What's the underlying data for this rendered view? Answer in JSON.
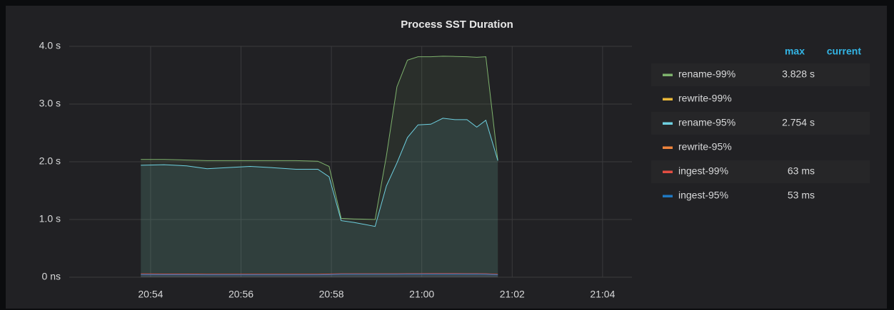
{
  "chart_data": {
    "type": "line",
    "title": "Process SST Duration",
    "x": [
      "20:53:47",
      "20:54:18",
      "20:54:48",
      "20:55:15",
      "20:55:43",
      "20:56:12",
      "20:56:40",
      "20:57:13",
      "20:57:42",
      "20:57:57",
      "20:58:13",
      "20:58:30",
      "20:58:58",
      "20:59:13",
      "20:59:27",
      "20:59:41",
      "20:59:55",
      "21:00:12",
      "21:00:28",
      "21:00:44",
      "21:01:00",
      "21:01:13",
      "21:01:25",
      "21:01:41"
    ],
    "xlim": [
      "20:52:12",
      "21:04:39"
    ],
    "xticks": [
      "20:54",
      "20:56",
      "20:58",
      "21:00",
      "21:02",
      "21:04"
    ],
    "ylim": [
      0,
      4
    ],
    "yticks": [
      {
        "value": 0,
        "label": "0 ns"
      },
      {
        "value": 1,
        "label": "1.0 s"
      },
      {
        "value": 2,
        "label": "2.0 s"
      },
      {
        "value": 3,
        "label": "3.0 s"
      },
      {
        "value": 4,
        "label": "4.0 s"
      }
    ],
    "grid": true,
    "fill": true,
    "legend_columns": [
      "max",
      "current"
    ],
    "series": [
      {
        "name": "rename-99%",
        "color": "#7eb26d",
        "max": "3.828 s",
        "values": [
          2.04,
          2.04,
          2.03,
          2.02,
          2.02,
          2.02,
          2.02,
          2.02,
          2.01,
          1.92,
          1.02,
          1.01,
          1.0,
          2.1,
          3.3,
          3.76,
          3.82,
          3.82,
          3.828,
          3.825,
          3.82,
          3.81,
          3.82,
          2.02
        ]
      },
      {
        "name": "rewrite-99%",
        "color": "#eab839",
        "max": null,
        "values": [
          null,
          null,
          null,
          null,
          null,
          null,
          null,
          null,
          null,
          null,
          null,
          null,
          null,
          null,
          null,
          null,
          null,
          null,
          null,
          null,
          null,
          null,
          null,
          null
        ]
      },
      {
        "name": "rename-95%",
        "color": "#6ed0e0",
        "max": "2.754 s",
        "values": [
          1.94,
          1.95,
          1.93,
          1.88,
          1.9,
          1.92,
          1.9,
          1.87,
          1.87,
          1.74,
          0.98,
          0.95,
          0.88,
          1.58,
          1.98,
          2.42,
          2.64,
          2.65,
          2.754,
          2.73,
          2.73,
          2.6,
          2.72,
          2.02
        ]
      },
      {
        "name": "rewrite-95%",
        "color": "#ef843c",
        "max": null,
        "values": [
          null,
          null,
          null,
          null,
          null,
          null,
          null,
          null,
          null,
          null,
          null,
          null,
          null,
          null,
          null,
          null,
          null,
          null,
          null,
          null,
          null,
          null,
          null,
          null
        ]
      },
      {
        "name": "ingest-99%",
        "color": "#e24d42",
        "max": "63 ms",
        "values": [
          0.058,
          0.056,
          0.055,
          0.052,
          0.052,
          0.052,
          0.052,
          0.052,
          0.052,
          0.055,
          0.06,
          0.06,
          0.06,
          0.061,
          0.061,
          0.062,
          0.062,
          0.063,
          0.063,
          0.063,
          0.062,
          0.062,
          0.061,
          0.05
        ]
      },
      {
        "name": "ingest-95%",
        "color": "#1f78c1",
        "max": "53 ms",
        "values": [
          0.046,
          0.045,
          0.044,
          0.042,
          0.042,
          0.042,
          0.042,
          0.042,
          0.042,
          0.045,
          0.05,
          0.05,
          0.05,
          0.051,
          0.051,
          0.052,
          0.052,
          0.053,
          0.053,
          0.053,
          0.052,
          0.052,
          0.051,
          0.042
        ]
      }
    ]
  }
}
